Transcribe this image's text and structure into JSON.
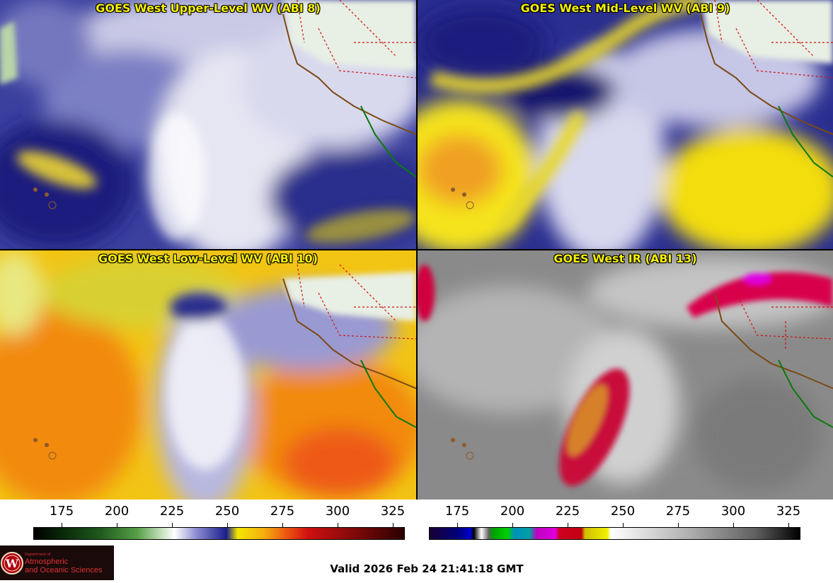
{
  "panels": [
    {
      "title": "GOES West Upper-Level WV (ABI 8)"
    },
    {
      "title": "GOES West Mid-Level WV (ABI 9)"
    },
    {
      "title": "GOES West Low-Level WV (ABI 10)"
    },
    {
      "title": "GOES West IR (ABI 13)"
    }
  ],
  "colorbars": [
    {
      "ticks": [
        "175",
        "200",
        "225",
        "250",
        "275",
        "300",
        "325"
      ]
    },
    {
      "ticks": [
        "175",
        "200",
        "225",
        "250",
        "275",
        "300",
        "325"
      ]
    }
  ],
  "logo": {
    "small": "Department of",
    "line1": "Atmospheric",
    "line2": "and Oceanic Sciences",
    "seal": "W"
  },
  "footer": {
    "valid": "Valid 2026 Feb 24 21:41:18 GMT"
  },
  "colors": {
    "title_text": "#f5f000",
    "wv_dry": "#f2e600",
    "wv_moist": "#1a1f8c",
    "ir_cold": "#d4004a"
  }
}
